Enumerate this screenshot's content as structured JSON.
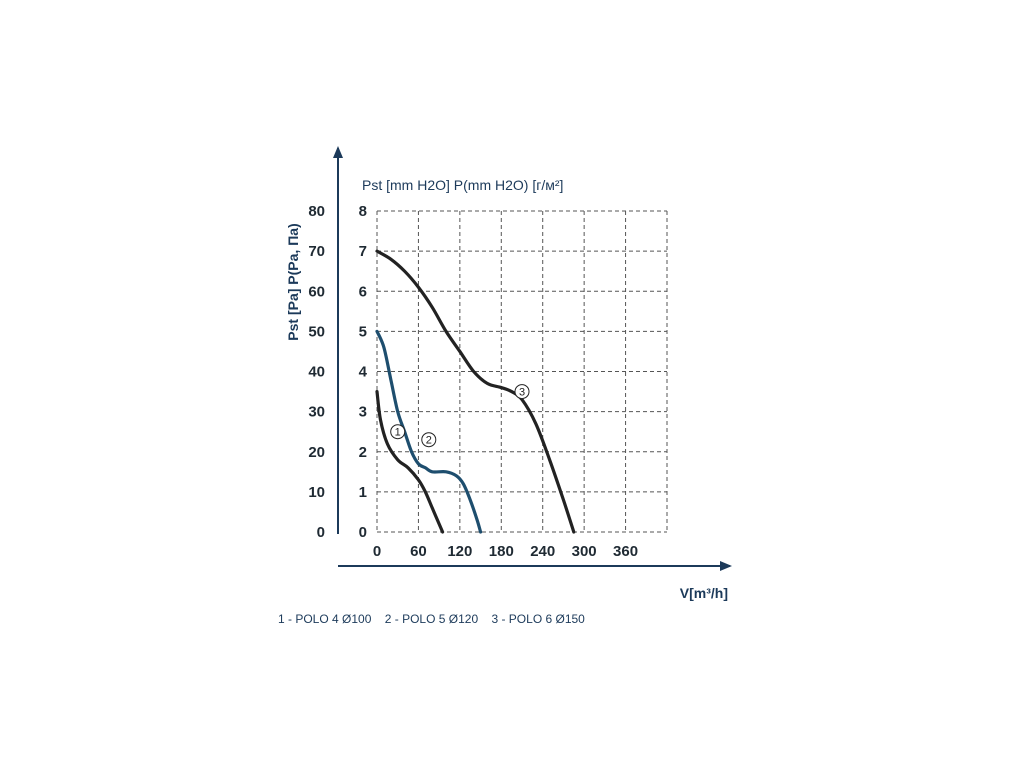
{
  "chart_data": {
    "type": "line",
    "xlabel": "V[m³/h]",
    "ylabel_left": "Pst [Pa] P(Pa, Па)",
    "ylabel_right": "Pst [mm H2O] P(mm H2O) [г/м²]",
    "xlim": [
      0,
      420
    ],
    "ylim_pa": [
      0,
      80
    ],
    "ylim_mm": [
      0,
      8
    ],
    "x_ticks": [
      "0",
      "60",
      "120",
      "180",
      "240",
      "300",
      "360"
    ],
    "y_ticks_pa": [
      "0",
      "10",
      "20",
      "30",
      "40",
      "50",
      "60",
      "70",
      "80"
    ],
    "y_ticks_mm": [
      "0",
      "1",
      "2",
      "3",
      "4",
      "5",
      "6",
      "7",
      "8"
    ],
    "grid": true,
    "series": [
      {
        "name": "1 - POLO 4 Ø100",
        "marker": "1",
        "color": "#222222",
        "label_at": [
          30,
          25
        ],
        "x": [
          0,
          5,
          15,
          30,
          45,
          60,
          70,
          80,
          90,
          95
        ],
        "y": [
          35,
          28,
          22,
          18,
          16,
          13,
          10,
          6,
          2,
          0
        ]
      },
      {
        "name": "2 - POLO 5 Ø120",
        "marker": "2",
        "color": "#1e4e6e",
        "label_at": [
          75,
          23
        ],
        "x": [
          0,
          10,
          20,
          30,
          40,
          50,
          60,
          70,
          80,
          100,
          115,
          125,
          135,
          145,
          150
        ],
        "y": [
          50,
          46,
          38,
          30,
          25,
          20,
          17,
          16,
          15,
          15,
          14,
          12,
          8,
          3,
          0
        ]
      },
      {
        "name": "3 - POLO 6 Ø150",
        "marker": "3",
        "color": "#222222",
        "label_at": [
          210,
          35
        ],
        "x": [
          0,
          20,
          40,
          60,
          80,
          100,
          120,
          140,
          160,
          180,
          195,
          210,
          230,
          250,
          270,
          285
        ],
        "y": [
          70,
          68,
          65,
          61,
          56,
          50,
          45,
          40,
          37,
          36,
          35,
          33,
          27,
          18,
          8,
          0
        ]
      }
    ]
  },
  "legend": {
    "item1": "1 - POLO 4 Ø100",
    "item2": "2 - POLO 5 Ø120",
    "item3": "3 - POLO 6 Ø150"
  }
}
